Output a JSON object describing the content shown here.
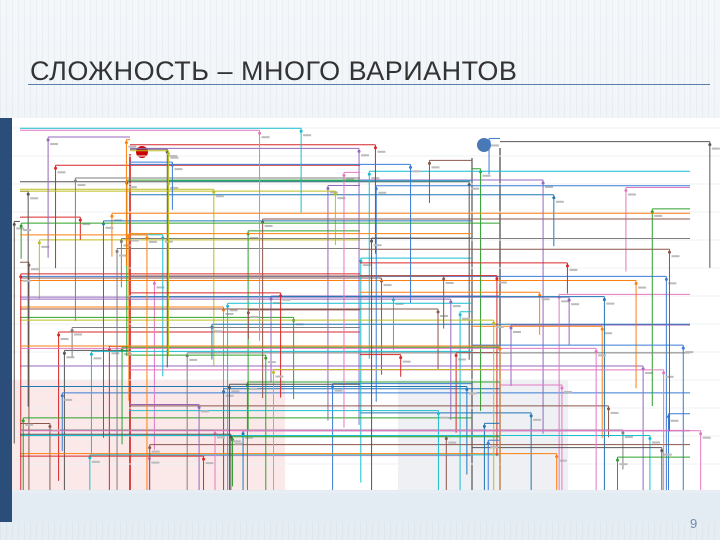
{
  "slide": {
    "title": "СЛОЖНОСТЬ – МНОГО ВАРИАНТОВ",
    "page_number": "9"
  }
}
